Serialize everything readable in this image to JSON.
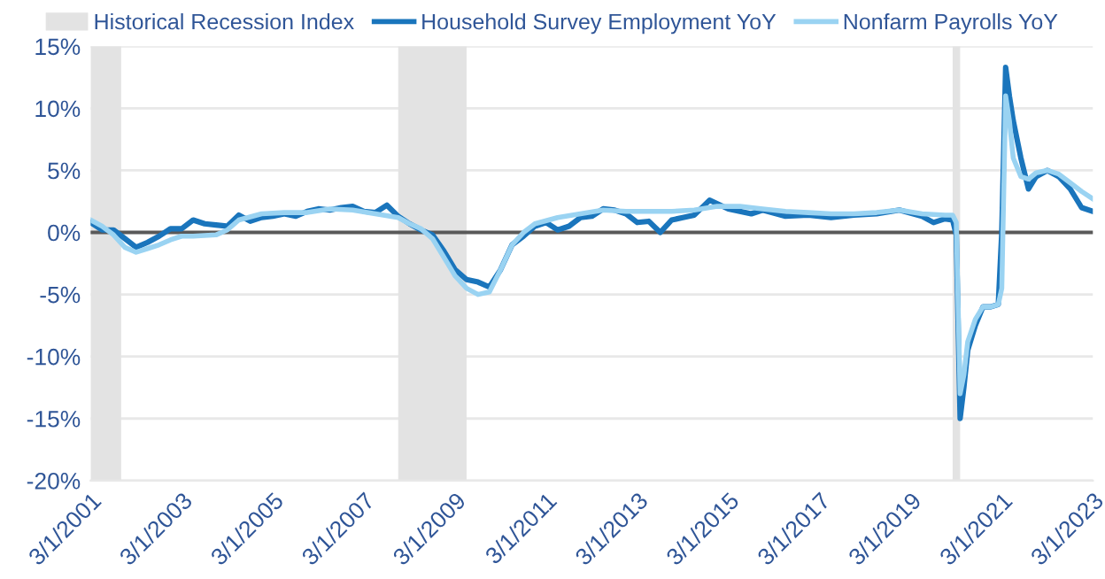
{
  "chart_data": {
    "type": "line",
    "x": [
      "2001-03",
      "2001-06",
      "2001-09",
      "2001-12",
      "2002-03",
      "2002-06",
      "2002-09",
      "2002-12",
      "2003-03",
      "2003-06",
      "2003-09",
      "2003-12",
      "2004-03",
      "2004-06",
      "2004-09",
      "2004-12",
      "2005-03",
      "2005-06",
      "2005-09",
      "2005-12",
      "2006-03",
      "2006-06",
      "2006-09",
      "2006-12",
      "2007-03",
      "2007-06",
      "2007-09",
      "2007-12",
      "2008-03",
      "2008-06",
      "2008-09",
      "2008-12",
      "2009-03",
      "2009-06",
      "2009-09",
      "2009-12",
      "2010-03",
      "2010-06",
      "2010-09",
      "2010-12",
      "2011-03",
      "2011-06",
      "2011-09",
      "2011-12",
      "2012-03",
      "2012-06",
      "2012-09",
      "2012-12",
      "2013-03",
      "2013-06",
      "2013-09",
      "2013-12",
      "2014-03",
      "2014-06",
      "2014-10",
      "2015-03",
      "2015-09",
      "2015-12",
      "2016-06",
      "2016-12",
      "2017-06",
      "2017-12",
      "2018-06",
      "2018-12",
      "2019-06",
      "2019-09",
      "2019-12",
      "2020-02",
      "2020-03",
      "2020-04",
      "2020-05",
      "2020-06",
      "2020-08",
      "2020-10",
      "2020-12",
      "2021-02",
      "2021-03",
      "2021-04",
      "2021-05",
      "2021-06",
      "2021-08",
      "2021-10",
      "2021-12",
      "2022-03",
      "2022-06",
      "2022-09",
      "2022-12",
      "2023-03"
    ],
    "series": [
      {
        "name": "Household Survey Employment YoY",
        "color": "#1a75bc",
        "values": [
          0.8,
          0.2,
          0.2,
          -0.5,
          -1.2,
          -0.8,
          -0.3,
          0.3,
          0.3,
          1.0,
          0.7,
          0.6,
          0.5,
          1.4,
          0.9,
          1.2,
          1.3,
          1.5,
          1.3,
          1.7,
          1.9,
          1.8,
          2.0,
          2.1,
          1.7,
          1.6,
          2.2,
          1.3,
          0.7,
          0.2,
          -0.2,
          -1.5,
          -3.0,
          -3.8,
          -4.0,
          -4.4,
          -3.0,
          -1.0,
          -0.3,
          0.5,
          0.8,
          0.2,
          0.5,
          1.2,
          1.3,
          1.9,
          1.8,
          1.5,
          0.8,
          0.9,
          0.0,
          1.0,
          1.2,
          1.4,
          2.6,
          1.9,
          1.5,
          1.8,
          1.3,
          1.4,
          1.2,
          1.4,
          1.5,
          1.8,
          1.3,
          0.8,
          1.1,
          1.0,
          -0.2,
          -15.0,
          -12.5,
          -9.5,
          -7.5,
          -6.0,
          -6.0,
          -5.8,
          0.0,
          13.3,
          11.0,
          9.0,
          6.0,
          3.5,
          4.5,
          5.0,
          4.5,
          3.5,
          2.0,
          1.7
        ]
      },
      {
        "name": "Nonfarm Payrolls YoY",
        "color": "#9ad3f2",
        "x": [
          "2001-03",
          "2001-06",
          "2001-09",
          "2001-12",
          "2002-03",
          "2002-06",
          "2002-09",
          "2002-12",
          "2003-03",
          "2003-06",
          "2003-12",
          "2004-03",
          "2004-06",
          "2004-12",
          "2005-06",
          "2005-12",
          "2006-06",
          "2006-12",
          "2007-06",
          "2007-12",
          "2008-03",
          "2008-06",
          "2008-09",
          "2008-12",
          "2009-03",
          "2009-06",
          "2009-09",
          "2009-12",
          "2010-03",
          "2010-06",
          "2010-09",
          "2010-12",
          "2011-06",
          "2011-12",
          "2012-06",
          "2012-12",
          "2013-06",
          "2013-12",
          "2014-06",
          "2014-12",
          "2015-06",
          "2015-12",
          "2016-06",
          "2016-12",
          "2017-06",
          "2017-12",
          "2018-06",
          "2018-12",
          "2019-06",
          "2019-12",
          "2020-02",
          "2020-03",
          "2020-04",
          "2020-05",
          "2020-06",
          "2020-08",
          "2020-10",
          "2020-12",
          "2021-02",
          "2021-03",
          "2021-04",
          "2021-05",
          "2021-06",
          "2021-08",
          "2021-10",
          "2021-12",
          "2022-03",
          "2022-06",
          "2022-09",
          "2022-12",
          "2023-03"
        ],
        "values": [
          1.0,
          0.5,
          -0.2,
          -1.2,
          -1.6,
          -1.3,
          -1.0,
          -0.6,
          -0.3,
          -0.3,
          -0.2,
          0.2,
          1.0,
          1.5,
          1.6,
          1.6,
          1.9,
          1.8,
          1.5,
          1.2,
          0.7,
          0.3,
          -0.5,
          -2.0,
          -3.5,
          -4.5,
          -5.0,
          -4.8,
          -3.0,
          -1.0,
          0.0,
          0.7,
          1.2,
          1.5,
          1.8,
          1.7,
          1.7,
          1.7,
          1.8,
          2.1,
          2.1,
          1.9,
          1.7,
          1.6,
          1.5,
          1.5,
          1.6,
          1.8,
          1.5,
          1.4,
          1.4,
          0.8,
          -13.0,
          -11.5,
          -8.8,
          -7.0,
          -6.0,
          -6.0,
          -5.8,
          -4.5,
          11.0,
          9.0,
          6.0,
          4.5,
          4.3,
          4.8,
          5.0,
          4.7,
          4.0,
          3.3,
          2.7
        ]
      }
    ],
    "bands": [
      {
        "axis": "x",
        "from": "2001-03",
        "to": "2001-11",
        "label": "Historical Recession Index",
        "color": "#e3e3e3"
      },
      {
        "axis": "x",
        "from": "2007-12",
        "to": "2009-06",
        "color": "#e3e3e3"
      },
      {
        "axis": "x",
        "from": "2020-02",
        "to": "2020-04",
        "color": "#e3e3e3"
      }
    ],
    "ref_lines": [
      {
        "axis": "y",
        "value": 0,
        "color": "#595959"
      }
    ],
    "xlim": [
      "2001-03-01",
      "2023-03-01"
    ],
    "xticks": [
      {
        "value": "2001-03-01",
        "label": "3/1/2001"
      },
      {
        "value": "2003-03-01",
        "label": "3/1/2003"
      },
      {
        "value": "2005-03-01",
        "label": "3/1/2005"
      },
      {
        "value": "2007-03-01",
        "label": "3/1/2007"
      },
      {
        "value": "2009-03-01",
        "label": "3/1/2009"
      },
      {
        "value": "2011-03-01",
        "label": "3/1/2011"
      },
      {
        "value": "2013-03-01",
        "label": "3/1/2013"
      },
      {
        "value": "2015-03-01",
        "label": "3/1/2015"
      },
      {
        "value": "2017-03-01",
        "label": "3/1/2017"
      },
      {
        "value": "2019-03-01",
        "label": "3/1/2019"
      },
      {
        "value": "2021-03-01",
        "label": "3/1/2021"
      },
      {
        "value": "2023-03-01",
        "label": "3/1/2023"
      }
    ],
    "ylim": [
      -20,
      15
    ],
    "yticks": [
      {
        "value": -20,
        "label": "-20%"
      },
      {
        "value": -15,
        "label": "-15%"
      },
      {
        "value": -10,
        "label": "-10%"
      },
      {
        "value": -5,
        "label": "-5%"
      },
      {
        "value": 0,
        "label": "0%"
      },
      {
        "value": 5,
        "label": "5%"
      },
      {
        "value": 10,
        "label": "10%"
      },
      {
        "value": 15,
        "label": "15%"
      }
    ],
    "grid": "y",
    "legend": "top",
    "line_style": "solid",
    "marker": "none"
  }
}
